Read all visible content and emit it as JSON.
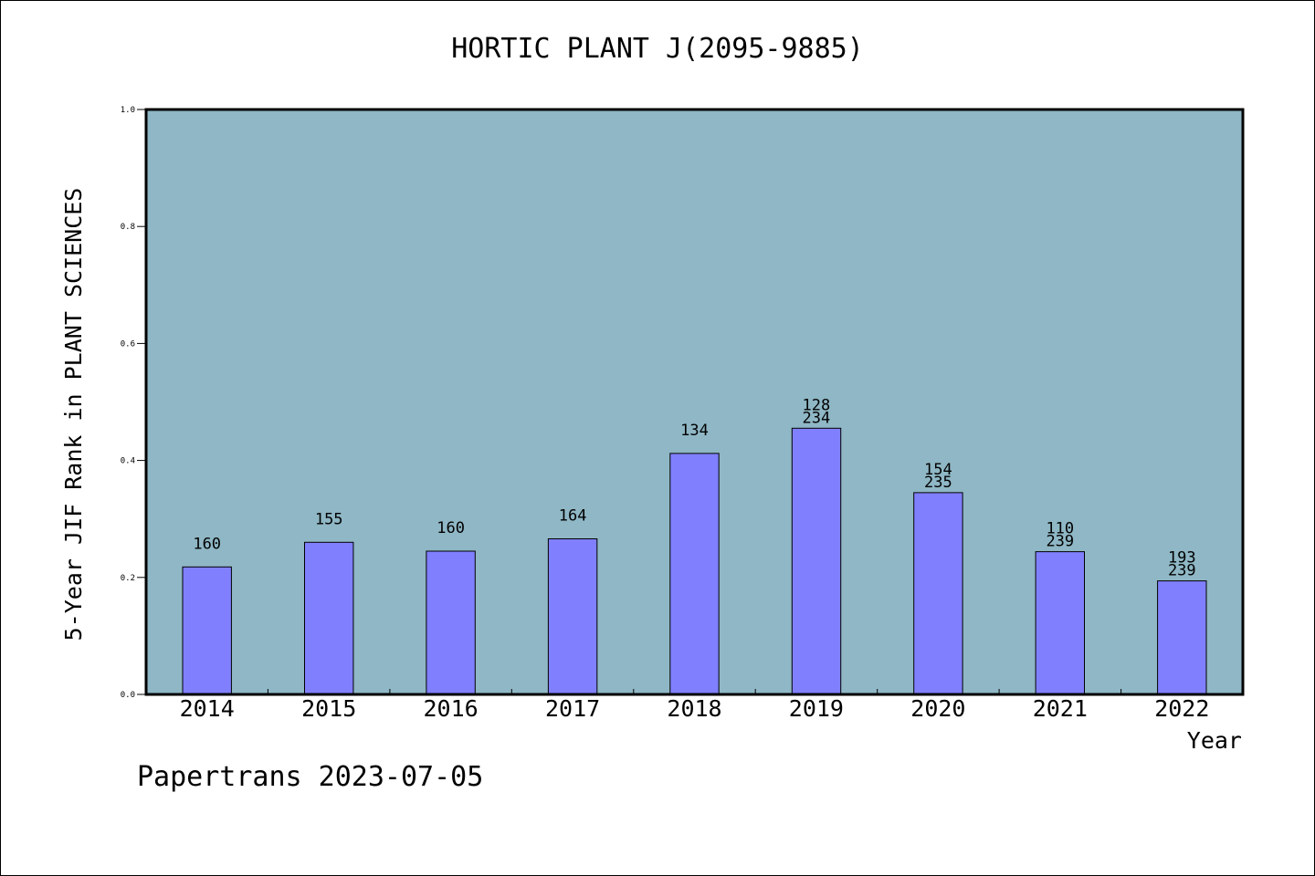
{
  "header": {
    "title": "HORTIC PLANT J(2095-9885)"
  },
  "footer": {
    "credit": "Papertrans 2023-07-05"
  },
  "colors": {
    "plot_background": "#8FB7C5",
    "bar_fill": "#8080FF",
    "bar_stroke": "#000000"
  },
  "chart_data": {
    "type": "bar",
    "title": "HORTIC PLANT J(2095-9885)",
    "xlabel": "Year",
    "ylabel": "5-Year JIF Rank in PLANT SCIENCES",
    "ylim": [
      0.0,
      1.0
    ],
    "yticks": [
      "0.0",
      "0.2",
      "0.4",
      "0.6",
      "0.8",
      "1.0"
    ],
    "categories": [
      "2014",
      "2015",
      "2016",
      "2017",
      "2018",
      "2019",
      "2020",
      "2021",
      "2022"
    ],
    "values": [
      0.218,
      0.26,
      0.245,
      0.266,
      0.412,
      0.455,
      0.345,
      0.244,
      0.194
    ],
    "annotations": [
      [
        "160"
      ],
      [
        "155"
      ],
      [
        "160"
      ],
      [
        "164"
      ],
      [
        "134"
      ],
      [
        "128",
        "234"
      ],
      [
        "154",
        "235"
      ],
      [
        "110",
        "239"
      ],
      [
        "193",
        "239"
      ]
    ],
    "grid": false,
    "legend": "none"
  }
}
